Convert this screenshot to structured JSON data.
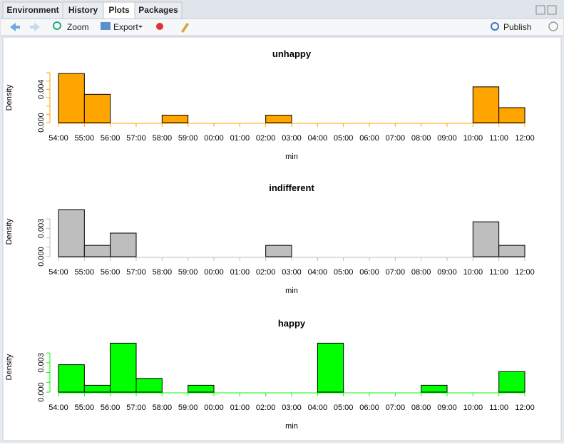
{
  "ui": {
    "tabs": [
      "Environment",
      "History",
      "Plots",
      "Packages"
    ],
    "active_tab": 2,
    "toolbar": {
      "zoom": "Zoom",
      "export": "Export",
      "publish": "Publish"
    }
  },
  "chart_data": [
    {
      "type": "histogram",
      "title": "unhappy",
      "xlabel": "min",
      "ylabel": "Density",
      "color": "#ffa500",
      "bins": [
        "54:00",
        "55:00",
        "56:00",
        "57:00",
        "58:00",
        "59:00",
        "00:00",
        "01:00",
        "02:00",
        "03:00",
        "04:00",
        "05:00",
        "06:00",
        "07:00",
        "08:00",
        "09:00",
        "10:00",
        "11:00",
        "12:00"
      ],
      "values": [
        0.0059,
        0.0034,
        0,
        0,
        0.0009,
        0,
        0,
        0,
        0.0009,
        0,
        0,
        0,
        0,
        0,
        0,
        0,
        0.0043,
        0.0018
      ],
      "ylim": [
        0,
        0.006
      ],
      "yticks": [
        {
          "value": 0,
          "label": "0.000"
        },
        {
          "value": 0.004,
          "label": "0.004"
        }
      ],
      "yminor": [
        0.001,
        0.002,
        0.003,
        0.005,
        0.006
      ]
    },
    {
      "type": "histogram",
      "title": "indifferent",
      "xlabel": "min",
      "ylabel": "Density",
      "color": "#bebebe",
      "bins": [
        "54:00",
        "55:00",
        "56:00",
        "57:00",
        "58:00",
        "59:00",
        "00:00",
        "01:00",
        "02:00",
        "03:00",
        "04:00",
        "05:00",
        "06:00",
        "07:00",
        "08:00",
        "09:00",
        "10:00",
        "11:00",
        "12:00"
      ],
      "values": [
        0.005,
        0.0012,
        0.0025,
        0,
        0,
        0,
        0,
        0,
        0.0012,
        0,
        0,
        0,
        0,
        0,
        0,
        0,
        0.0037,
        0.0012
      ],
      "ylim": [
        0,
        0.0053
      ],
      "yticks": [
        {
          "value": 0,
          "label": "0.000"
        },
        {
          "value": 0.003,
          "label": "0.003"
        }
      ],
      "yminor": [
        0.001,
        0.002,
        0.004
      ]
    },
    {
      "type": "histogram",
      "title": "happy",
      "xlabel": "min",
      "ylabel": "Density",
      "color": "#00ff00",
      "bins": [
        "54:00",
        "55:00",
        "56:00",
        "57:00",
        "58:00",
        "59:00",
        "00:00",
        "01:00",
        "02:00",
        "03:00",
        "04:00",
        "05:00",
        "06:00",
        "07:00",
        "08:00",
        "09:00",
        "10:00",
        "11:00",
        "12:00"
      ],
      "values": [
        0.0028,
        0.0007,
        0.005,
        0.0014,
        0,
        0.0007,
        0,
        0,
        0,
        0,
        0.005,
        0,
        0,
        0,
        0.0007,
        0,
        0,
        0.0021
      ],
      "ylim": [
        0,
        0.0051
      ],
      "yticks": [
        {
          "value": 0,
          "label": "0.000"
        },
        {
          "value": 0.003,
          "label": "0.003"
        }
      ],
      "yminor": [
        0.001,
        0.002,
        0.004
      ]
    }
  ]
}
